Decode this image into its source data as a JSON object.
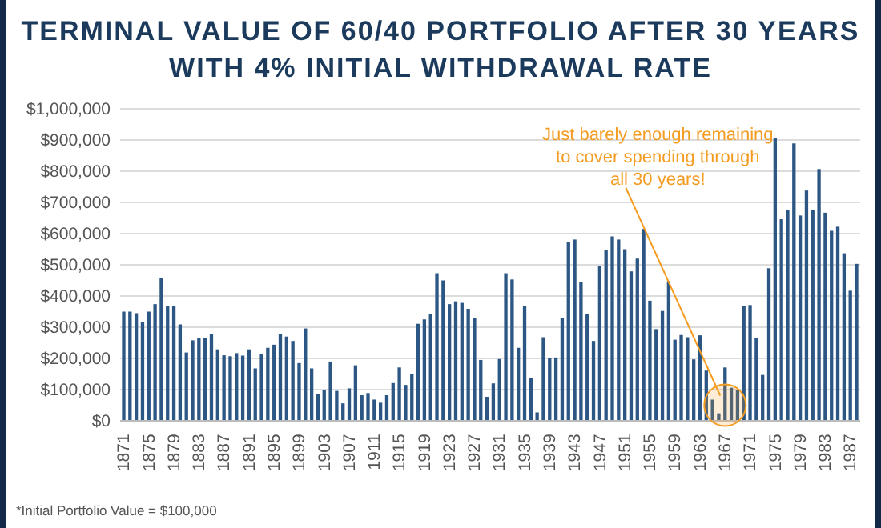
{
  "chart_data": {
    "type": "bar",
    "title": "TERMINAL VALUE OF 60/40 PORTFOLIO AFTER 30 YEARS\nWITH 4% INITIAL WITHDRAWAL RATE",
    "categories": [
      "1871",
      null,
      null,
      null,
      "1875",
      null,
      null,
      null,
      "1879",
      null,
      null,
      null,
      "1883",
      null,
      null,
      null,
      "1887",
      null,
      null,
      null,
      "1891",
      null,
      null,
      null,
      "1895",
      null,
      null,
      null,
      "1899",
      null,
      null,
      null,
      "1903",
      null,
      null,
      null,
      "1907",
      null,
      null,
      null,
      "1911",
      null,
      null,
      null,
      "1915",
      null,
      null,
      null,
      "1919",
      null,
      null,
      null,
      "1923",
      null,
      null,
      null,
      "1927",
      null,
      null,
      null,
      "1931",
      null,
      null,
      null,
      "1935",
      null,
      null,
      null,
      "1939",
      null,
      null,
      null,
      "1943",
      null,
      null,
      null,
      "1947",
      null,
      null,
      null,
      "1951",
      null,
      null,
      null,
      "1955",
      null,
      null,
      null,
      "1959",
      null,
      null,
      null,
      "1963",
      null,
      null,
      null,
      "1967",
      null,
      null,
      null,
      "1971",
      null,
      null,
      null,
      "1975",
      null,
      null,
      null,
      "1979",
      null,
      null,
      null,
      "1983",
      null,
      null,
      null,
      "1987",
      null
    ],
    "values": [
      350000,
      350000,
      345000,
      316000,
      350000,
      374000,
      458000,
      369000,
      368000,
      309000,
      219000,
      258000,
      265000,
      265000,
      279000,
      229000,
      210000,
      207000,
      217000,
      209000,
      229000,
      168000,
      214000,
      234000,
      244000,
      279000,
      270000,
      256000,
      185000,
      296000,
      168000,
      85000,
      100000,
      190000,
      96000,
      56000,
      104000,
      178000,
      82000,
      89000,
      68000,
      58000,
      82000,
      121000,
      171000,
      115000,
      149000,
      311000,
      325000,
      342000,
      473000,
      450000,
      374000,
      383000,
      378000,
      359000,
      330000,
      195000,
      77000,
      120000,
      198000,
      473000,
      453000,
      234000,
      369000,
      138000,
      27000,
      268000,
      200000,
      203000,
      330000,
      574000,
      581000,
      444000,
      342000,
      256000,
      496000,
      547000,
      591000,
      581000,
      550000,
      479000,
      520000,
      615000,
      385000,
      294000,
      352000,
      448000,
      260000,
      275000,
      268000,
      197000,
      274000,
      161000,
      68000,
      24000,
      171000,
      106000,
      99000,
      369000,
      371000,
      265000,
      147000,
      489000,
      906000,
      646000,
      677000,
      889000,
      658000,
      738000,
      677000,
      807000,
      667000,
      609000,
      622000,
      537000,
      417000,
      503000
    ],
    "color": "#2c5785",
    "ylim": [
      0,
      1000000
    ],
    "yticks": [
      {
        "value": 0,
        "label": "$0"
      },
      {
        "value": 100000,
        "label": "$100,000"
      },
      {
        "value": 200000,
        "label": "$200,000"
      },
      {
        "value": 300000,
        "label": "$300,000"
      },
      {
        "value": 400000,
        "label": "$400,000"
      },
      {
        "value": 500000,
        "label": "$500,000"
      },
      {
        "value": 600000,
        "label": "$600,000"
      },
      {
        "value": 700000,
        "label": "$700,000"
      },
      {
        "value": 800000,
        "label": "$800,000"
      },
      {
        "value": 900000,
        "label": "$900,000"
      },
      {
        "value": 1000000,
        "label": "$1,000,000"
      }
    ],
    "grid": "y",
    "annotations": [
      {
        "text": "Just barely enough remaining\nto cover spending through\nall 30 years!",
        "x": "1967",
        "y": 50000
      },
      "*Initial Portfolio Value = $100,000"
    ]
  }
}
